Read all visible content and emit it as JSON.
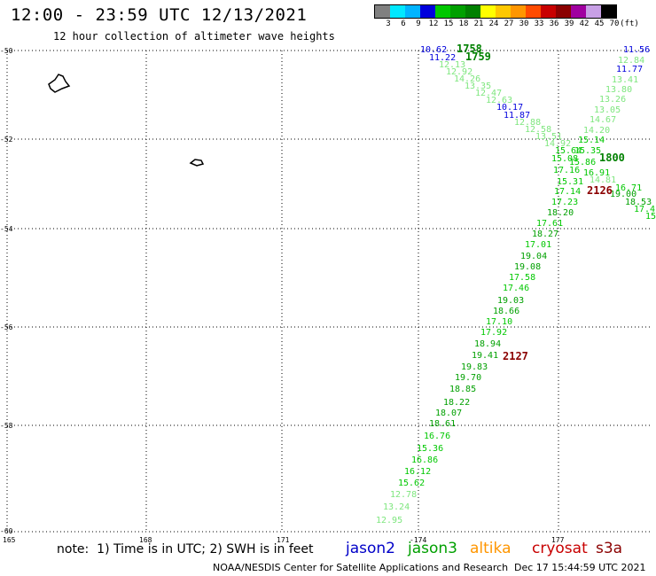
{
  "header": {
    "title": "12:00 - 23:59 UTC 12/13/2021",
    "subtitle": "12 hour collection of altimeter wave heights"
  },
  "legend_scale": {
    "bins": [
      "3",
      "6",
      "9",
      "12",
      "15",
      "18",
      "21",
      "24",
      "27",
      "30",
      "33",
      "36",
      "39",
      "42",
      "45",
      "70"
    ],
    "unit": "(ft)",
    "colors": [
      "#808080",
      "#00e8ff",
      "#00b4ff",
      "#0000dc",
      "#00c800",
      "#00a000",
      "#008000",
      "#ffff00",
      "#ffc800",
      "#ff9600",
      "#ff4b00",
      "#c80000",
      "#8b0000",
      "#a000a0",
      "#c8a0e6",
      "#000000"
    ]
  },
  "axes": {
    "lon_labels": [
      "165",
      "168",
      "171",
      "-174",
      "177"
    ],
    "lat_labels": [
      "-50",
      "-52",
      "-54",
      "-56",
      "-58",
      "-60"
    ]
  },
  "tracks": {
    "descending": [
      "10.62",
      "11.22",
      "12.13",
      "12.92",
      "14.26",
      "13.35",
      "12.47",
      "12.63",
      "10.17",
      "11.87",
      "12.88",
      "12.58",
      "13.51",
      "14.92",
      "15.64",
      "15.08",
      "17.16",
      "15.31",
      "17.14",
      "17.23",
      "18.20",
      "17.61",
      "18.27",
      "17.01",
      "19.04",
      "19.08",
      "17.58",
      "17.46",
      "19.03",
      "18.66",
      "17.10",
      "17.92",
      "18.94",
      "19.41",
      "19.83",
      "19.70",
      "18.85",
      "18.22",
      "18.07",
      "18.61",
      "16.76",
      "15.36",
      "16.86",
      "16.12",
      "15.62",
      "12.78",
      "13.24",
      "12.95"
    ],
    "ascending": [
      "11.56",
      "12.84",
      "11.77",
      "13.41",
      "13.80",
      "13.26",
      "13.05",
      "14.67",
      "14.20",
      "15.14",
      "15.35",
      "15.86",
      "16.91",
      "14.81",
      "16.71",
      "19.00",
      "18.53",
      "17.4",
      "15"
    ],
    "time_labels": [
      "1758",
      "1759",
      "1800",
      "2126",
      "2127"
    ]
  },
  "footer": {
    "note": "note:  1) Time is in UTC; 2) SWH is in feet",
    "missions": [
      {
        "name": "jason2",
        "color": "#0000c8"
      },
      {
        "name": "jason3",
        "color": "#00a000"
      },
      {
        "name": "altika",
        "color": "#ff9600"
      },
      {
        "name": "cryosat",
        "color": "#c80000"
      },
      {
        "name": "s3a",
        "color": "#8b0000"
      }
    ],
    "credit": "NOAA/NESDIS Center for Satellite Applications and Research",
    "timestamp": "Dec 17 15:44:59 UTC 2021"
  }
}
